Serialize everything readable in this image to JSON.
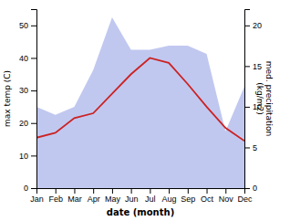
{
  "chart_data": {
    "type": "line",
    "categories": [
      "Jan",
      "Feb",
      "Mar",
      "Apr",
      "May",
      "Jun",
      "Jul",
      "Aug",
      "Sep",
      "Oct",
      "Nov",
      "Dec"
    ],
    "series": [
      {
        "type": "area",
        "axis": "y2",
        "color": "#c0c8f0",
        "values": [
          10.0,
          9.0,
          10.0,
          14.5,
          21.0,
          17.0,
          17.0,
          17.5,
          17.5,
          16.5,
          7.0,
          12.5
        ]
      },
      {
        "type": "line",
        "color": "#cc2222",
        "values": [
          15.5,
          17.0,
          21.5,
          23.0,
          29.0,
          35.0,
          40.0,
          38.5,
          32.0,
          25.0,
          18.5,
          14.5
        ]
      }
    ],
    "xlabel": "date (month)",
    "ylabel": "max temp (C)",
    "y2label": "med. precipitation\n(kg/m2)",
    "ylim": [
      0,
      55
    ],
    "yticks": [
      0,
      10,
      20,
      30,
      40,
      50
    ],
    "y2lim": [
      0,
      22
    ],
    "y2ticks": [
      0,
      5,
      10,
      15,
      20
    ],
    "grid": false
  }
}
